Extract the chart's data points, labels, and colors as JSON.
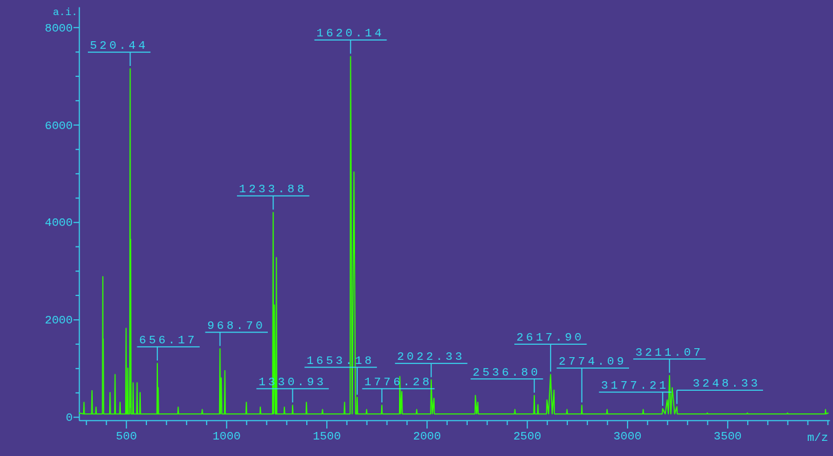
{
  "chart_data": {
    "type": "line",
    "xlabel": "m/z",
    "ylabel": "a.i.",
    "xlim": [
      265,
      4010
    ],
    "ylim": [
      -70,
      8420
    ],
    "xticks": [
      {
        "value": 300,
        "label": null
      },
      {
        "value": 400,
        "label": null
      },
      500,
      {
        "value": 600,
        "label": null
      },
      {
        "value": 700,
        "label": null
      },
      {
        "value": 800,
        "label": null
      },
      {
        "value": 900,
        "label": null
      },
      1000,
      {
        "value": 1100,
        "label": null
      },
      {
        "value": 1200,
        "label": null
      },
      {
        "value": 1300,
        "label": null
      },
      {
        "value": 1400,
        "label": null
      },
      1500,
      {
        "value": 1600,
        "label": null
      },
      {
        "value": 1700,
        "label": null
      },
      {
        "value": 1800,
        "label": null
      },
      {
        "value": 1900,
        "label": null
      },
      2000,
      {
        "value": 2100,
        "label": null
      },
      {
        "value": 2200,
        "label": null
      },
      {
        "value": 2300,
        "label": null
      },
      {
        "value": 2400,
        "label": null
      },
      2500,
      {
        "value": 2600,
        "label": null
      },
      {
        "value": 2700,
        "label": null
      },
      {
        "value": 2800,
        "label": null
      },
      {
        "value": 2900,
        "label": null
      },
      3000,
      {
        "value": 3100,
        "label": null
      },
      {
        "value": 3200,
        "label": null
      },
      {
        "value": 3300,
        "label": null
      },
      {
        "value": 3400,
        "label": null
      },
      3500,
      {
        "value": 3600,
        "label": null
      },
      {
        "value": 3700,
        "label": null
      },
      {
        "value": 3800,
        "label": null
      },
      {
        "value": 3900,
        "label": null
      },
      {
        "value": 4000,
        "label": null
      }
    ],
    "yticks": [
      0,
      {
        "value": 500,
        "label": null
      },
      {
        "value": 1000,
        "label": null
      },
      {
        "value": 1500,
        "label": null
      },
      2000,
      {
        "value": 2500,
        "label": null
      },
      {
        "value": 3000,
        "label": null
      },
      {
        "value": 3500,
        "label": null
      },
      4000,
      {
        "value": 4500,
        "label": null
      },
      {
        "value": 5000,
        "label": null
      },
      {
        "value": 5500,
        "label": null
      },
      6000,
      {
        "value": 6500,
        "label": null
      },
      {
        "value": 7000,
        "label": null
      },
      {
        "value": 7500,
        "label": null
      },
      8000
    ],
    "grid": false,
    "marker": "none",
    "line_style": "solid",
    "series": [
      {
        "color": "#33ff00",
        "x": [
          265,
          288,
          290,
          292,
          328,
          330,
          332,
          348,
          350,
          352,
          382,
          384,
          385,
          386,
          388,
          418,
          420,
          422,
          443,
          445,
          447,
          468,
          470,
          472,
          498,
          500,
          502,
          507,
          509,
          511,
          518,
          520.44,
          521.5,
          523,
          525,
          533,
          535,
          537,
          553,
          555,
          557,
          568,
          570,
          572,
          654,
          656.17,
          658,
          660,
          662,
          758,
          760,
          762,
          878,
          880,
          882,
          966,
          968.7,
          971,
          975,
          978,
          991,
          993,
          995,
          1098,
          1100,
          1102,
          1168,
          1170,
          1172,
          1231,
          1233.88,
          1236,
          1240,
          1244,
          1248,
          1250,
          1252,
          1288,
          1290,
          1292,
          1329,
          1330.93,
          1333,
          1398,
          1400,
          1402,
          1478,
          1480,
          1482,
          1588,
          1590,
          1592,
          1618,
          1620.14,
          1628,
          1637,
          1645,
          1651,
          1653.18,
          1655,
          1698,
          1700,
          1702,
          1774,
          1776.28,
          1778,
          1864,
          1866,
          1870,
          1876,
          1878,
          1948,
          1950,
          1952,
          2020,
          2022.33,
          2028,
          2036,
          2038,
          2241,
          2243,
          2249,
          2255,
          2257,
          2438,
          2440,
          2442,
          2534,
          2536.8,
          2539,
          2553,
          2555,
          2557,
          2598,
          2600,
          2608,
          2617.9,
          2626,
          2635,
          2637,
          2698,
          2700,
          2702,
          2772,
          2774.09,
          2776,
          2898,
          2900,
          2902,
          3078,
          3080,
          3082,
          3175,
          3177.21,
          3190,
          3200,
          3206,
          3211.07,
          3218,
          3225,
          3237,
          3248.33,
          3250,
          3398,
          3400,
          3402,
          3598,
          3600,
          3602,
          3798,
          3800,
          3802,
          3988,
          3990,
          3992,
          4005
        ],
        "values": [
          80,
          60,
          300,
          60,
          60,
          540,
          60,
          60,
          200,
          60,
          60,
          2880,
          200,
          1600,
          60,
          60,
          500,
          60,
          60,
          870,
          60,
          60,
          300,
          60,
          60,
          1820,
          60,
          60,
          1000,
          60,
          60,
          7150,
          200,
          3650,
          60,
          60,
          700,
          60,
          60,
          700,
          60,
          60,
          500,
          60,
          60,
          1100,
          60,
          600,
          60,
          60,
          200,
          60,
          60,
          150,
          60,
          60,
          1400,
          60,
          800,
          60,
          60,
          950,
          60,
          60,
          300,
          60,
          60,
          200,
          60,
          60,
          4200,
          60,
          2300,
          60,
          60,
          3270,
          60,
          60,
          200,
          60,
          60,
          240,
          60,
          60,
          300,
          60,
          60,
          150,
          60,
          60,
          300,
          60,
          60,
          7400,
          60,
          5030,
          60,
          60,
          400,
          60,
          60,
          150,
          60,
          60,
          240,
          60,
          60,
          830,
          60,
          520,
          60,
          60,
          150,
          60,
          60,
          760,
          60,
          380,
          60,
          60,
          440,
          60,
          300,
          60,
          60,
          150,
          60,
          60,
          440,
          60,
          60,
          250,
          60,
          60,
          350,
          60,
          870,
          60,
          550,
          60,
          60,
          150,
          60,
          60,
          240,
          60,
          60,
          150,
          60,
          60,
          150,
          60,
          60,
          170,
          60,
          350,
          60,
          850,
          60,
          600,
          60,
          210,
          60,
          60,
          80,
          60,
          60,
          80,
          60,
          60,
          80,
          60,
          60,
          150,
          60,
          80
        ]
      }
    ],
    "annotations": [
      {
        "text": "520.44",
        "x": 520.44,
        "y": 7150
      },
      {
        "text": "656.17",
        "x": 656.17,
        "y": 1100
      },
      {
        "text": "968.70",
        "x": 968.7,
        "y": 1400
      },
      {
        "text": "1233.88",
        "x": 1233.88,
        "y": 4200
      },
      {
        "text": "1330.93",
        "x": 1330.93,
        "y": 240
      },
      {
        "text": "1620.14",
        "x": 1620.14,
        "y": 7400
      },
      {
        "text": "1653.18",
        "x": 1653.18,
        "y": 400
      },
      {
        "text": "1776.28",
        "x": 1776.28,
        "y": 240
      },
      {
        "text": "2022.33",
        "x": 2022.33,
        "y": 760
      },
      {
        "text": "2536.80",
        "x": 2536.8,
        "y": 440
      },
      {
        "text": "2617.90",
        "x": 2617.9,
        "y": 870
      },
      {
        "text": "2774.09",
        "x": 2774.09,
        "y": 240
      },
      {
        "text": "3177.21",
        "x": 3177.21,
        "y": 170
      },
      {
        "text": "3211.07",
        "x": 3211.07,
        "y": 850
      },
      {
        "text": "3248.33",
        "x": 3248.33,
        "y": 210
      }
    ]
  }
}
